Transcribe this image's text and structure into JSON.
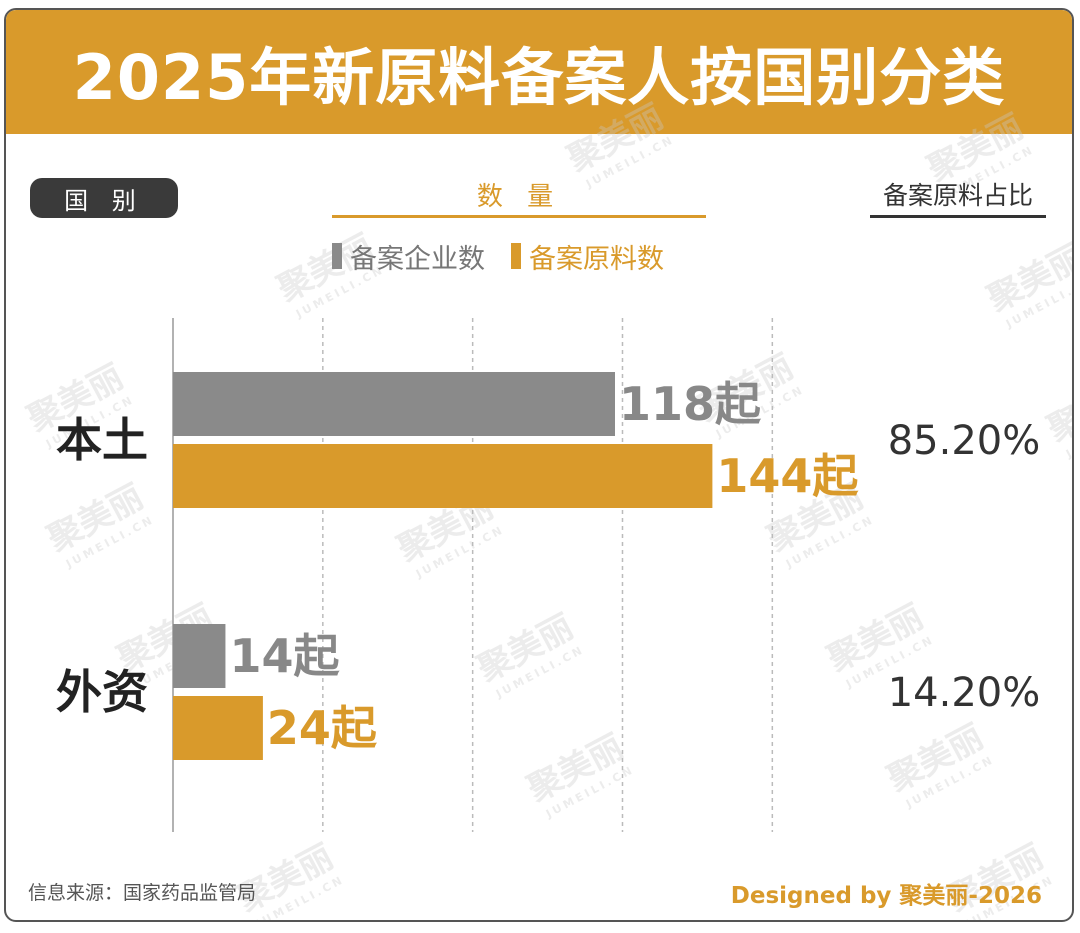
{
  "title": "2025年新原料备案人按国别分类",
  "headers": {
    "country": "国 别",
    "quantity": "数 量",
    "ratio": "备案原料占比"
  },
  "legend": [
    {
      "label": "备案企业数",
      "color": "#8a8a8a"
    },
    {
      "label": "备案原料数",
      "color": "#D99A2B"
    }
  ],
  "chart_data": {
    "type": "bar",
    "orientation": "horizontal",
    "categories": [
      "本土",
      "外资"
    ],
    "series": [
      {
        "name": "备案企业数",
        "values": [
          118,
          14
        ],
        "labels": [
          "118起",
          "14起"
        ],
        "color": "#8a8a8a"
      },
      {
        "name": "备案原料数",
        "values": [
          144,
          24
        ],
        "labels": [
          "144起",
          "24起"
        ],
        "color": "#D99A2B"
      }
    ],
    "percentages": [
      "85.20%",
      "14.20%"
    ],
    "xlim": [
      0,
      160
    ],
    "grid": "vertical-dashed",
    "legend_position": "top"
  },
  "footer": {
    "source": "信息来源：国家药品监管局",
    "credit": "Designed by 聚美丽-2026"
  },
  "watermark": {
    "text": "聚美丽",
    "sub": "JUMEILI.CN"
  }
}
